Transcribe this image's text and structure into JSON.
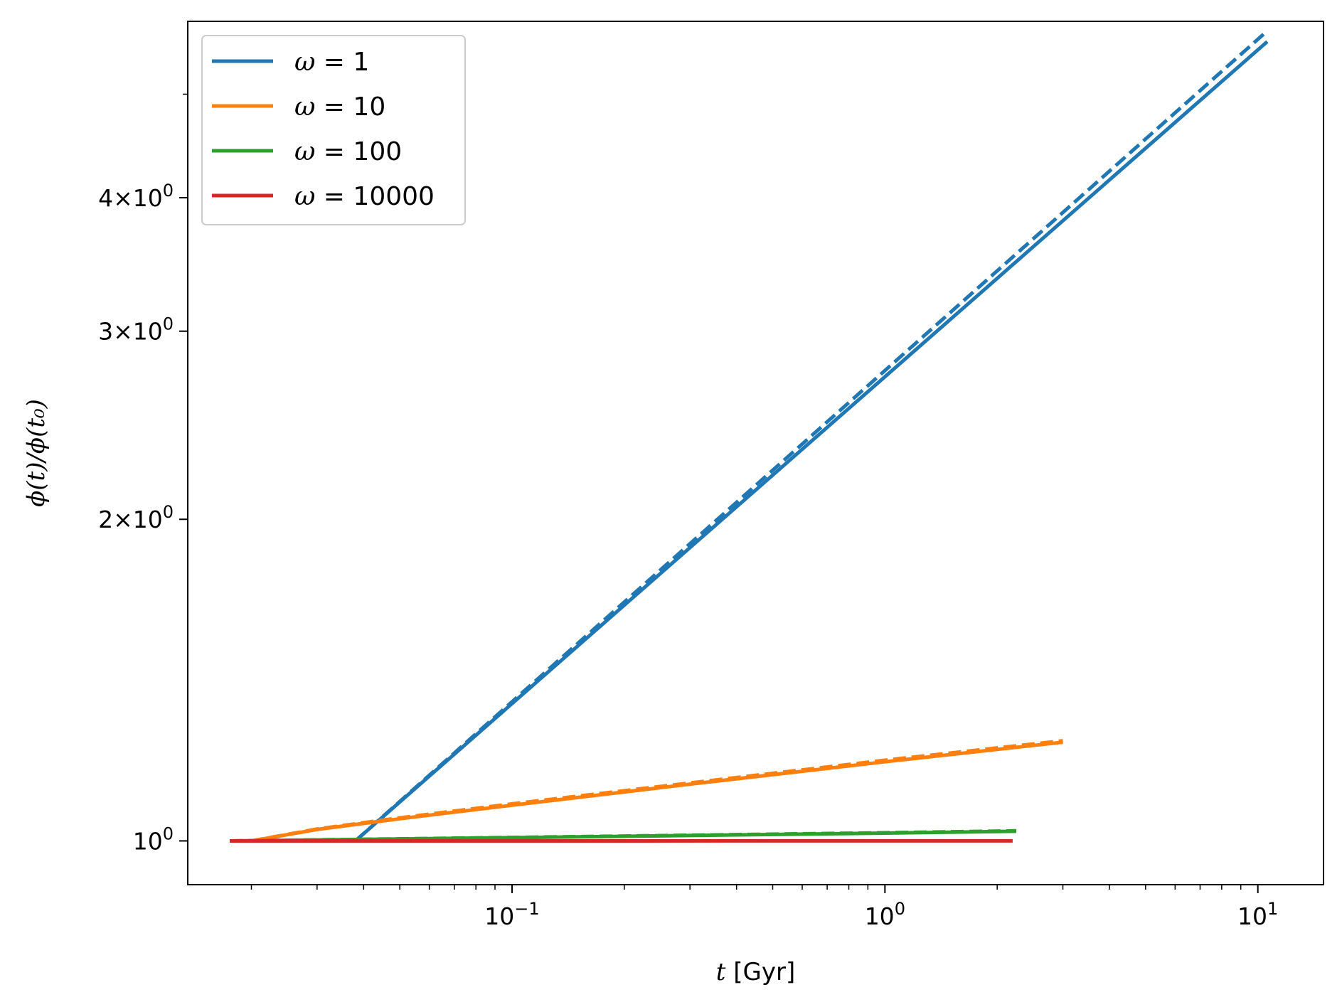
{
  "chart_data": {
    "type": "line",
    "xscale": "log",
    "yscale": "log",
    "xlim": [
      0.0135,
      15
    ],
    "ylim": [
      0.91,
      5.85
    ],
    "xlabel": {
      "var": "t",
      "rest": " [Gyr]"
    },
    "ylabel": "ϕ(t)/ϕ(t₀)",
    "xticks": [
      {
        "value": 0.1,
        "base": "10",
        "exp": "−1"
      },
      {
        "value": 1,
        "base": "10",
        "exp": "0"
      },
      {
        "value": 10,
        "base": "10",
        "exp": "1"
      }
    ],
    "yticks": [
      {
        "value": 1,
        "base": "10",
        "exp": "0"
      },
      {
        "value": 2,
        "base": "2×10",
        "exp": "0"
      },
      {
        "value": 3,
        "base": "3×10",
        "exp": "0"
      },
      {
        "value": 4,
        "base": "4×10",
        "exp": "0"
      }
    ],
    "legend_position": "upper-left",
    "series": [
      {
        "name": "ω = 1",
        "legend_var": "ω",
        "legend_val": " = 1",
        "color": "#1f77b4",
        "solid": {
          "x": [
            0.038,
            10.6
          ],
          "y": [
            1.0,
            5.6
          ]
        },
        "dashed": {
          "x": [
            0.038,
            10.6
          ],
          "y": [
            1.0,
            5.73
          ]
        }
      },
      {
        "name": "ω = 10",
        "legend_var": "ω",
        "legend_val": " = 10",
        "color": "#ff7f0e",
        "solid": {
          "x": [
            0.02,
            0.03,
            0.05,
            0.1,
            0.3,
            1.0,
            2.0,
            3.0
          ],
          "y": [
            1.0,
            1.025,
            1.049,
            1.08,
            1.13,
            1.186,
            1.218,
            1.237
          ]
        },
        "dashed": {
          "x": [
            0.02,
            0.03,
            0.05,
            0.1,
            0.3,
            1.0,
            2.0,
            3.0
          ],
          "y": [
            1.0,
            1.026,
            1.051,
            1.083,
            1.133,
            1.19,
            1.222,
            1.241
          ]
        }
      },
      {
        "name": "ω = 100",
        "legend_var": "ω",
        "legend_val": " = 100",
        "color": "#2ca02c",
        "solid": {
          "x": [
            0.0175,
            0.1,
            1.0,
            2.25
          ],
          "y": [
            1.0,
            1.007,
            1.017,
            1.021
          ]
        },
        "dashed": {
          "x": [
            0.0175,
            0.1,
            1.0,
            2.25
          ],
          "y": [
            1.0,
            1.0075,
            1.0178,
            1.022
          ]
        }
      },
      {
        "name": "ω = 10000",
        "legend_var": "ω",
        "legend_val": " = 10000",
        "color": "#d62728",
        "solid": {
          "x": [
            0.0175,
            2.2
          ],
          "y": [
            1.0,
            1.0001
          ]
        },
        "dashed": null
      }
    ]
  }
}
